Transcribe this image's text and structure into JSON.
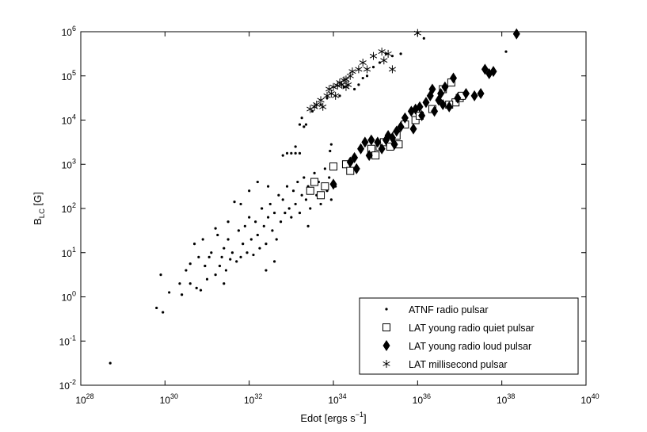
{
  "chart_data": {
    "type": "scatter",
    "xlabel": {
      "base": "Edot [ergs s",
      "sup": "−1",
      "close": "]"
    },
    "ylabel": {
      "base": "B",
      "sub": "LC",
      "unit": " [G]"
    },
    "x_log_scale": true,
    "y_log_scale": true,
    "xlim_exp": [
      28,
      40
    ],
    "ylim_exp": [
      -2,
      6
    ],
    "x_tick_exponents": [
      "28",
      "30",
      "32",
      "34",
      "36",
      "38",
      "40"
    ],
    "y_tick_exponents": [
      "-2",
      "-1",
      "0",
      "1",
      "2",
      "3",
      "4",
      "5",
      "6"
    ],
    "tick_base": "10",
    "grid": false,
    "legend_position": "bottom-right",
    "series": [
      {
        "name": "ATNF radio pulsar",
        "marker": "dot",
        "points": [
          [
            28.7,
            -1.5
          ],
          [
            29.8,
            -0.25
          ],
          [
            29.95,
            -0.35
          ],
          [
            29.9,
            0.5
          ],
          [
            30.1,
            0.1
          ],
          [
            30.35,
            0.3
          ],
          [
            30.4,
            0.05
          ],
          [
            30.5,
            0.6
          ],
          [
            30.6,
            0.3
          ],
          [
            30.7,
            1.2
          ],
          [
            30.75,
            0.2
          ],
          [
            30.8,
            0.9
          ],
          [
            30.85,
            0.15
          ],
          [
            30.95,
            0.7
          ],
          [
            31.0,
            0.4
          ],
          [
            31.05,
            0.9
          ],
          [
            31.1,
            1.0
          ],
          [
            31.2,
            0.5
          ],
          [
            31.25,
            1.4
          ],
          [
            31.3,
            0.7
          ],
          [
            31.35,
            0.9
          ],
          [
            31.4,
            1.1
          ],
          [
            31.45,
            0.6
          ],
          [
            31.5,
            1.3
          ],
          [
            31.55,
            0.85
          ],
          [
            31.6,
            1.0
          ],
          [
            31.65,
            2.15
          ],
          [
            31.7,
            0.8
          ],
          [
            31.75,
            1.5
          ],
          [
            31.8,
            0.9
          ],
          [
            31.85,
            1.2
          ],
          [
            31.9,
            1.6
          ],
          [
            31.95,
            1.0
          ],
          [
            32.0,
            1.8
          ],
          [
            32.05,
            1.3
          ],
          [
            32.1,
            0.95
          ],
          [
            32.15,
            1.7
          ],
          [
            32.2,
            1.4
          ],
          [
            32.25,
            1.1
          ],
          [
            32.3,
            2.0
          ],
          [
            32.35,
            1.6
          ],
          [
            32.4,
            1.2
          ],
          [
            32.45,
            1.8
          ],
          [
            32.5,
            2.1
          ],
          [
            32.55,
            1.5
          ],
          [
            32.6,
            1.9
          ],
          [
            32.65,
            1.3
          ],
          [
            32.7,
            2.3
          ],
          [
            32.75,
            1.7
          ],
          [
            32.8,
            2.2
          ],
          [
            32.85,
            1.9
          ],
          [
            32.9,
            2.5
          ],
          [
            32.95,
            2.0
          ],
          [
            33.0,
            1.8
          ],
          [
            33.05,
            2.4
          ],
          [
            33.1,
            2.1
          ],
          [
            33.15,
            2.6
          ],
          [
            33.2,
            1.9
          ],
          [
            33.25,
            2.3
          ],
          [
            33.3,
            2.7
          ],
          [
            33.35,
            2.2
          ],
          [
            33.4,
            2.5
          ],
          [
            33.45,
            2.0
          ],
          [
            33.5,
            2.4
          ],
          [
            33.55,
            2.8
          ],
          [
            33.6,
            2.3
          ],
          [
            33.65,
            2.6
          ],
          [
            33.7,
            2.1
          ],
          [
            33.75,
            2.5
          ],
          [
            33.8,
            2.9
          ],
          [
            33.85,
            2.4
          ],
          [
            33.9,
            2.7
          ],
          [
            33.95,
            2.2
          ],
          [
            34.0,
            2.6
          ],
          [
            33.92,
            3.3
          ],
          [
            33.95,
            3.45
          ],
          [
            34.05,
            2.5
          ],
          [
            32.8,
            3.2
          ],
          [
            32.9,
            3.25
          ],
          [
            33.0,
            3.25
          ],
          [
            33.1,
            3.25
          ],
          [
            33.2,
            3.25
          ],
          [
            32.45,
            2.5
          ],
          [
            33.1,
            3.4
          ],
          [
            33.2,
            3.9
          ],
          [
            33.25,
            4.05
          ],
          [
            33.3,
            3.85
          ],
          [
            33.35,
            3.9
          ],
          [
            33.5,
            4.2
          ],
          [
            33.7,
            4.35
          ],
          [
            33.85,
            4.5
          ],
          [
            34.15,
            4.55
          ],
          [
            34.25,
            4.75
          ],
          [
            34.5,
            4.7
          ],
          [
            34.6,
            4.8
          ],
          [
            34.7,
            4.95
          ],
          [
            34.8,
            5.0
          ],
          [
            34.95,
            5.2
          ],
          [
            35.1,
            5.3
          ],
          [
            35.25,
            5.5
          ],
          [
            35.4,
            5.45
          ],
          [
            35.6,
            5.5
          ],
          [
            36.15,
            5.85
          ],
          [
            38.1,
            5.55
          ],
          [
            31.5,
            1.7
          ],
          [
            31.2,
            1.55
          ],
          [
            30.9,
            1.3
          ],
          [
            32.0,
            2.4
          ],
          [
            32.2,
            2.6
          ],
          [
            31.8,
            2.1
          ],
          [
            33.4,
            1.6
          ],
          [
            32.6,
            0.8
          ],
          [
            31.4,
            0.3
          ],
          [
            30.6,
            0.75
          ],
          [
            32.4,
            0.6
          ]
        ]
      },
      {
        "name": "LAT young radio quiet pulsar",
        "marker": "square",
        "points": [
          [
            33.45,
            2.4
          ],
          [
            33.55,
            2.6
          ],
          [
            33.7,
            2.3
          ],
          [
            33.8,
            2.5
          ],
          [
            34.0,
            2.95
          ],
          [
            34.3,
            3.0
          ],
          [
            34.4,
            2.85
          ],
          [
            34.9,
            3.35
          ],
          [
            35.0,
            3.2
          ],
          [
            35.1,
            3.4
          ],
          [
            35.2,
            3.5
          ],
          [
            35.35,
            3.4
          ],
          [
            35.5,
            3.65
          ],
          [
            35.55,
            3.45
          ],
          [
            35.7,
            3.9
          ],
          [
            35.95,
            4.0
          ],
          [
            36.05,
            4.1
          ],
          [
            36.35,
            4.25
          ],
          [
            36.6,
            4.7
          ],
          [
            36.8,
            4.85
          ],
          [
            36.9,
            4.4
          ],
          [
            37.0,
            4.5
          ],
          [
            37.05,
            4.55
          ],
          [
            36.75,
            4.35
          ]
        ]
      },
      {
        "name": "LAT young radio loud pulsar",
        "marker": "diamond",
        "points": [
          [
            34.0,
            2.55
          ],
          [
            34.4,
            3.05
          ],
          [
            34.5,
            3.15
          ],
          [
            34.55,
            2.9
          ],
          [
            34.65,
            3.35
          ],
          [
            34.75,
            3.5
          ],
          [
            35.05,
            3.5
          ],
          [
            35.15,
            3.35
          ],
          [
            35.25,
            3.55
          ],
          [
            35.3,
            3.65
          ],
          [
            35.4,
            3.6
          ],
          [
            35.5,
            3.75
          ],
          [
            35.6,
            3.85
          ],
          [
            35.7,
            4.05
          ],
          [
            35.85,
            4.2
          ],
          [
            35.95,
            4.25
          ],
          [
            36.05,
            4.3
          ],
          [
            36.1,
            4.1
          ],
          [
            36.2,
            4.4
          ],
          [
            36.3,
            4.55
          ],
          [
            36.35,
            4.7
          ],
          [
            36.4,
            4.2
          ],
          [
            36.5,
            4.45
          ],
          [
            36.55,
            4.6
          ],
          [
            36.6,
            4.35
          ],
          [
            36.65,
            4.75
          ],
          [
            36.75,
            4.3
          ],
          [
            36.85,
            4.95
          ],
          [
            36.95,
            4.5
          ],
          [
            37.15,
            4.6
          ],
          [
            37.35,
            4.55
          ],
          [
            37.5,
            4.6
          ],
          [
            37.6,
            5.15
          ],
          [
            37.7,
            5.05
          ],
          [
            37.8,
            5.1
          ],
          [
            35.9,
            3.8
          ],
          [
            35.45,
            3.45
          ],
          [
            34.85,
            3.2
          ],
          [
            34.9,
            3.55
          ],
          [
            38.35,
            5.95
          ]
        ]
      },
      {
        "name": "LAT millisecond pulsar",
        "marker": "asterisk",
        "points": [
          [
            33.45,
            4.25
          ],
          [
            33.55,
            4.3
          ],
          [
            33.6,
            4.35
          ],
          [
            33.7,
            4.45
          ],
          [
            33.85,
            4.55
          ],
          [
            33.95,
            4.6
          ],
          [
            34.05,
            4.55
          ],
          [
            34.0,
            4.75
          ],
          [
            34.1,
            4.78
          ],
          [
            34.15,
            4.85
          ],
          [
            34.2,
            4.8
          ],
          [
            34.25,
            4.9
          ],
          [
            34.3,
            4.75
          ],
          [
            34.35,
            4.8
          ],
          [
            34.4,
            5.0
          ],
          [
            34.45,
            5.1
          ],
          [
            34.6,
            5.15
          ],
          [
            34.7,
            5.3
          ],
          [
            34.8,
            5.15
          ],
          [
            34.95,
            5.45
          ],
          [
            35.15,
            5.55
          ],
          [
            35.3,
            5.5
          ],
          [
            35.4,
            5.15
          ],
          [
            35.2,
            5.35
          ],
          [
            33.75,
            4.3
          ],
          [
            33.9,
            4.7
          ],
          [
            34.3,
            4.92
          ],
          [
            36.0,
            5.97
          ]
        ]
      }
    ]
  }
}
